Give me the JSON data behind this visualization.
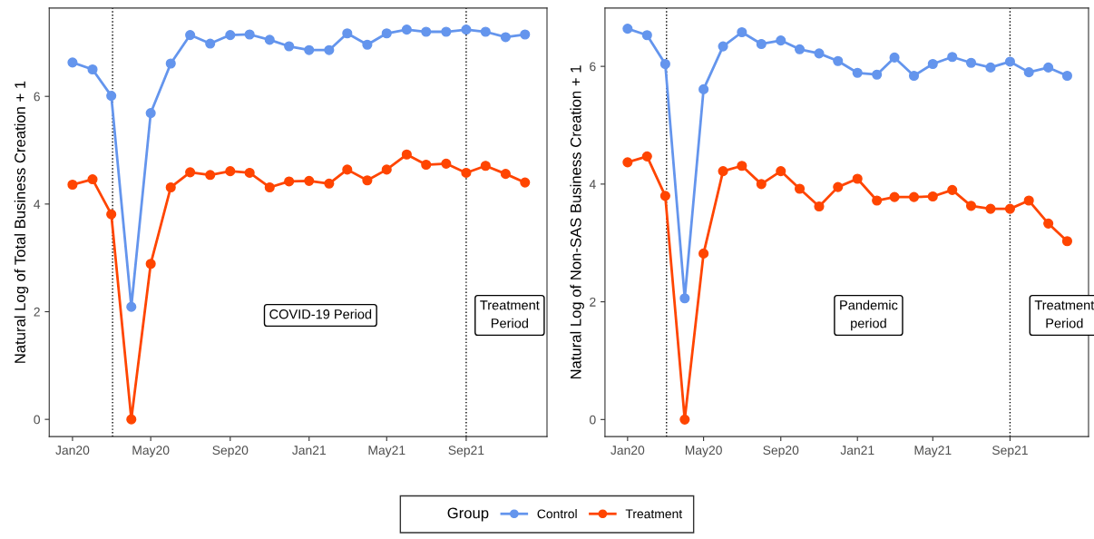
{
  "chart_data": [
    {
      "type": "line",
      "ylabel": "Natural Log of Total Business Creation + 1",
      "x": [
        "2020-01",
        "2020-02",
        "2020-03",
        "2020-04",
        "2020-05",
        "2020-06",
        "2020-07",
        "2020-08",
        "2020-09",
        "2020-10",
        "2020-11",
        "2020-12",
        "2021-01",
        "2021-02",
        "2021-03",
        "2021-04",
        "2021-05",
        "2021-06",
        "2021-07",
        "2021-08",
        "2021-09",
        "2021-10",
        "2021-11",
        "2021-12"
      ],
      "series": [
        {
          "name": "Control",
          "color": "#6495ed",
          "values": [
            6.63,
            6.5,
            6.01,
            2.09,
            5.69,
            6.61,
            7.14,
            6.98,
            7.14,
            7.15,
            7.05,
            6.93,
            6.86,
            6.86,
            7.17,
            6.96,
            7.17,
            7.24,
            7.2,
            7.2,
            7.24,
            7.2,
            7.1,
            7.15
          ]
        },
        {
          "name": "Treatment",
          "color": "#ff4500",
          "values": [
            4.36,
            4.46,
            3.81,
            0,
            2.89,
            4.31,
            4.59,
            4.54,
            4.61,
            4.58,
            4.31,
            4.42,
            4.43,
            4.38,
            4.64,
            4.44,
            4.64,
            4.92,
            4.73,
            4.75,
            4.58,
            4.71,
            4.56,
            4.4
          ]
        }
      ],
      "xlim": [
        "2019-11-26",
        "2022-01-04"
      ],
      "xticks": [
        {
          "value": "2020-01-01",
          "label": "Jan20"
        },
        {
          "value": "2020-05-01",
          "label": "May20"
        },
        {
          "value": "2020-09-01",
          "label": "Sep20"
        },
        {
          "value": "2021-01-01",
          "label": "Jan21"
        },
        {
          "value": "2021-05-01",
          "label": "May21"
        },
        {
          "value": "2021-09-01",
          "label": "Sep21"
        }
      ],
      "ylim": [
        -0.32,
        7.64
      ],
      "yticks": [
        0,
        2,
        4,
        6
      ],
      "ref_lines": [
        {
          "axis": "x",
          "value": "2020-03-03",
          "line_style": "dotted",
          "color": "#000000"
        },
        {
          "axis": "x",
          "value": "2021-09-01",
          "line_style": "dotted",
          "color": "#000000"
        }
      ],
      "annotations": [
        "COVID-19 Period",
        "Treatment\nPeriod"
      ],
      "marker": "circle",
      "line_style": "solid",
      "grid": false,
      "legend": "bottom",
      "legend_title": "Group"
    },
    {
      "type": "line",
      "ylabel": "Natural Log of Non-SAS Business Creation + 1",
      "x": [
        "2020-01",
        "2020-02",
        "2020-03",
        "2020-04",
        "2020-05",
        "2020-06",
        "2020-07",
        "2020-08",
        "2020-09",
        "2020-10",
        "2020-11",
        "2020-12",
        "2021-01",
        "2021-02",
        "2021-03",
        "2021-04",
        "2021-05",
        "2021-06",
        "2021-07",
        "2021-08",
        "2021-09",
        "2021-10",
        "2021-11",
        "2021-12"
      ],
      "series": [
        {
          "color": "#6495ed",
          "values": [
            6.64,
            6.53,
            6.04,
            2.06,
            5.61,
            6.34,
            6.58,
            6.38,
            6.44,
            6.29,
            6.22,
            6.09,
            5.89,
            5.86,
            6.15,
            5.84,
            6.04,
            6.16,
            6.06,
            5.98,
            6.08,
            5.9,
            5.98,
            5.84
          ]
        },
        {
          "color": "#ff4500",
          "values": [
            4.37,
            4.47,
            3.8,
            0,
            2.82,
            4.22,
            4.31,
            4.0,
            4.22,
            3.92,
            3.62,
            3.95,
            4.09,
            3.72,
            3.78,
            3.78,
            3.79,
            3.9,
            3.63,
            3.58,
            3.58,
            3.72,
            3.33,
            3.03
          ]
        }
      ],
      "xlim": [
        "2019-11-26",
        "2022-01-04"
      ],
      "xticks": [
        {
          "value": "2020-01-01",
          "label": "Jan20"
        },
        {
          "value": "2020-05-01",
          "label": "May20"
        },
        {
          "value": "2020-09-01",
          "label": "Sep20"
        },
        {
          "value": "2021-01-01",
          "label": "Jan21"
        },
        {
          "value": "2021-05-01",
          "label": "May21"
        },
        {
          "value": "2021-09-01",
          "label": "Sep21"
        }
      ],
      "ylim": [
        -0.29,
        6.99
      ],
      "yticks": [
        0,
        2,
        4,
        6
      ],
      "ref_lines": [
        {
          "axis": "x",
          "value": "2020-03-03",
          "line_style": "dotted",
          "color": "#000000"
        },
        {
          "axis": "x",
          "value": "2021-09-01",
          "line_style": "dotted",
          "color": "#000000"
        }
      ],
      "annotations": [
        "Pandemic\nperiod",
        "Treatment\nPeriod"
      ],
      "marker": "circle",
      "line_style": "solid",
      "grid": false
    }
  ]
}
